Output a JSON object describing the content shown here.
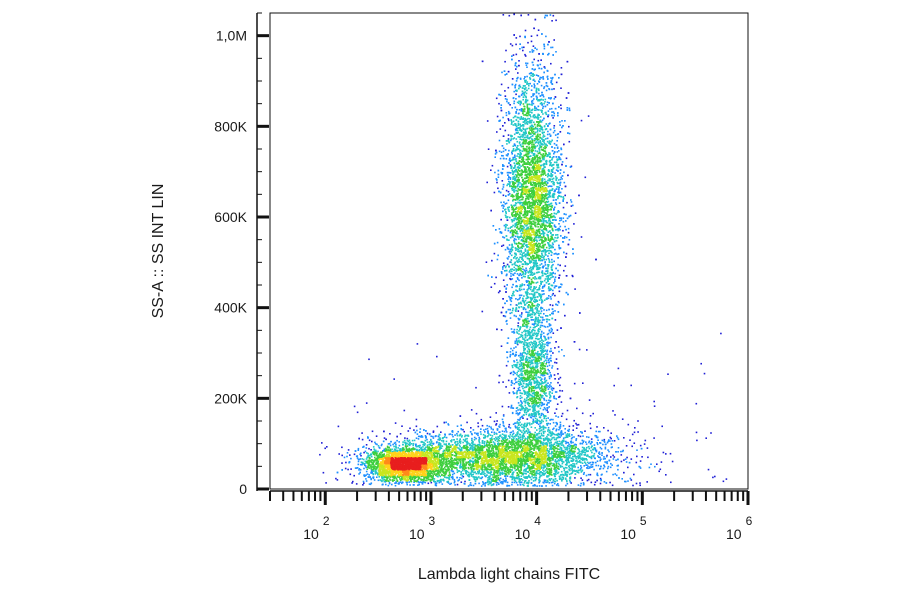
{
  "chart_data": {
    "type": "scatter",
    "title": "",
    "xlabel": "Lambda light chains FITC",
    "ylabel": "SS-A :: SS INT LIN",
    "x_scale": "log",
    "xlim": [
      30,
      1000000
    ],
    "ylim": [
      0,
      1050000
    ],
    "x_ticks": [
      {
        "value": 100,
        "base": "10",
        "exp": "2"
      },
      {
        "value": 1000,
        "base": "10",
        "exp": "3"
      },
      {
        "value": 10000,
        "base": "10",
        "exp": "4"
      },
      {
        "value": 100000,
        "base": "10",
        "exp": "5"
      },
      {
        "value": 1000000,
        "base": "10",
        "exp": "6"
      }
    ],
    "y_ticks": [
      {
        "value": 0,
        "label": "0"
      },
      {
        "value": 200000,
        "label": "200K"
      },
      {
        "value": 400000,
        "label": "400K"
      },
      {
        "value": 600000,
        "label": "600K"
      },
      {
        "value": 800000,
        "label": "800K"
      },
      {
        "value": 1000000,
        "label": "1,0M"
      }
    ],
    "grid": false,
    "legend": "none",
    "density_colors": [
      "#1f1fd6",
      "#1e90ff",
      "#22c7c7",
      "#3ecf3e",
      "#c8e61e",
      "#ffd21a",
      "#ff8a1a",
      "#e81e1e"
    ],
    "populations": [
      {
        "x_center": 550,
        "y_center": 55000,
        "count": 2600,
        "x_spread_log": 0.17,
        "y_spread": 18000
      },
      {
        "x_center": 3000,
        "y_center": 70000,
        "count": 3200,
        "x_spread_log": 0.5,
        "y_spread": 28000
      },
      {
        "x_center": 10000,
        "y_center": 80000,
        "count": 1400,
        "x_spread_log": 0.38,
        "y_spread": 35000
      },
      {
        "x_center": 9000,
        "y_center": 640000,
        "count": 5200,
        "x_spread_log": 0.14,
        "y_spread": 145000
      },
      {
        "x_center": 9000,
        "y_center": 250000,
        "count": 1300,
        "x_spread_log": 0.1,
        "y_spread": 75000
      }
    ]
  }
}
